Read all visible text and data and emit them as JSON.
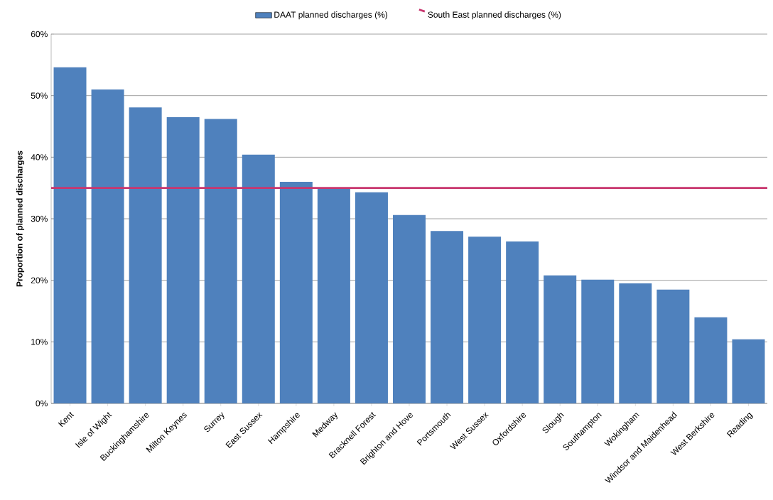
{
  "chart_data": {
    "type": "bar",
    "ylabel": "Proportion of planned discharges",
    "categories": [
      "Kent",
      "Isle of Wight",
      "Buckinghamshire",
      "Milton Keynes",
      "Surrey",
      "East Sussex",
      "Hampshire",
      "Medway",
      "Bracknell Forest",
      "Brighton and Hove",
      "Portsmouth",
      "West Sussex",
      "Oxfordshire",
      "Slough",
      "Southampton",
      "Wokingham",
      "Windsor and Maidenhead",
      "West Berkshire",
      "Reading"
    ],
    "series": [
      {
        "name": "DAAT planned discharges (%)",
        "color": "#4f81bd",
        "values": [
          54.6,
          51.0,
          48.1,
          46.5,
          46.2,
          40.4,
          36.0,
          35.0,
          34.3,
          30.6,
          28.0,
          27.1,
          26.3,
          20.8,
          20.1,
          19.5,
          18.5,
          14.0,
          10.4
        ]
      }
    ],
    "ref_lines": [
      {
        "axis": "y",
        "value": 35.0,
        "label": "South East planned discharges (%)",
        "color": "#c8366e"
      }
    ],
    "ylim": [
      0,
      60
    ],
    "yticks": [
      {
        "value": 0,
        "label": "0%"
      },
      {
        "value": 10,
        "label": "10%"
      },
      {
        "value": 20,
        "label": "20%"
      },
      {
        "value": 30,
        "label": "30%"
      },
      {
        "value": 40,
        "label": "40%"
      },
      {
        "value": 50,
        "label": "50%"
      },
      {
        "value": 60,
        "label": "60%"
      }
    ],
    "grid": "y",
    "legend": "top"
  }
}
